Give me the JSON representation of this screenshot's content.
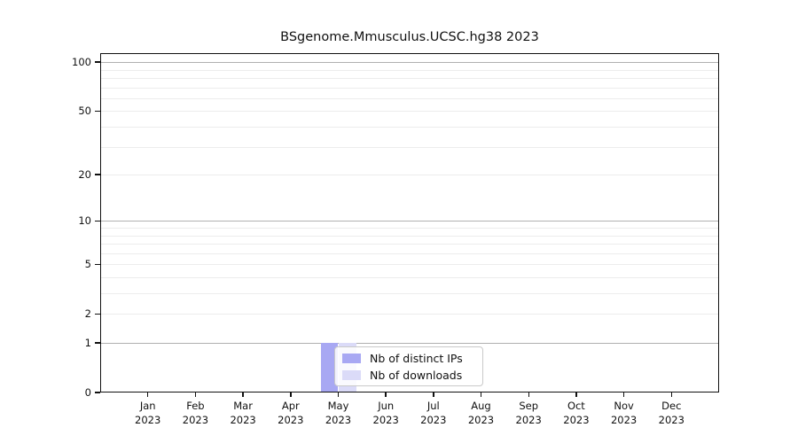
{
  "figure": {
    "background": "#ffffff",
    "axis_color": "#111111",
    "major_grid_color": "#b0b0b0",
    "minor_grid_color": "#ececec"
  },
  "chart_data": {
    "type": "bar",
    "title": "BSgenome.Mmusculus.UCSC.hg38 2023",
    "xlabel": "",
    "ylabel": "",
    "year_label": "2023",
    "categories": [
      "Jan",
      "Feb",
      "Mar",
      "Apr",
      "May",
      "Jun",
      "Jul",
      "Aug",
      "Sep",
      "Oct",
      "Nov",
      "Dec"
    ],
    "series": [
      {
        "name": "Nb of distinct IPs",
        "color": "#a8a8f3",
        "values": [
          0,
          0,
          0,
          0,
          1,
          0,
          0,
          0,
          0,
          0,
          0,
          0
        ]
      },
      {
        "name": "Nb of downloads",
        "color": "#dbdbf8",
        "values": [
          0,
          0,
          0,
          0,
          1,
          0,
          0,
          0,
          0,
          0,
          0,
          0
        ]
      }
    ],
    "yscale": "log1p",
    "ylim": [
      0,
      113.5
    ],
    "y_ticks": [
      0,
      1,
      2,
      5,
      10,
      20,
      50,
      100
    ],
    "y_major_gridlines": [
      1,
      10,
      100
    ],
    "y_minor_gridlines": [
      2,
      3,
      4,
      5,
      6,
      7,
      8,
      9,
      20,
      30,
      40,
      50,
      60,
      70,
      80,
      90
    ],
    "grid": true,
    "legend_position": "inside-bottom-center"
  }
}
